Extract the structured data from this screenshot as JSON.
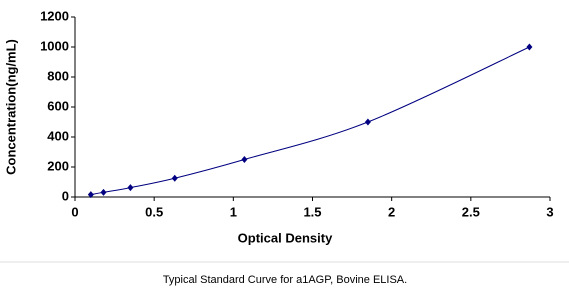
{
  "chart_data": {
    "type": "scatter",
    "x_label": "Optical Density",
    "y_label": "Concentration(ng/mL)",
    "caption": "Typical Standard Curve for a1AGP, Bovine ELISA.",
    "series": [
      {
        "color": "#000080",
        "x": [
          0.1,
          0.18,
          0.35,
          0.63,
          1.07,
          1.85,
          2.87
        ],
        "values": [
          15.6,
          31.25,
          62.5,
          125,
          250,
          500,
          1000
        ]
      }
    ],
    "smooth_line": true,
    "xlim": [
      0,
      3
    ],
    "xticks": [
      0,
      0.5,
      1,
      1.5,
      2,
      2.5,
      3
    ],
    "ylim": [
      0,
      1200
    ],
    "yticks": [
      0,
      200,
      400,
      600,
      800,
      1000,
      1200
    ],
    "grid": false
  }
}
